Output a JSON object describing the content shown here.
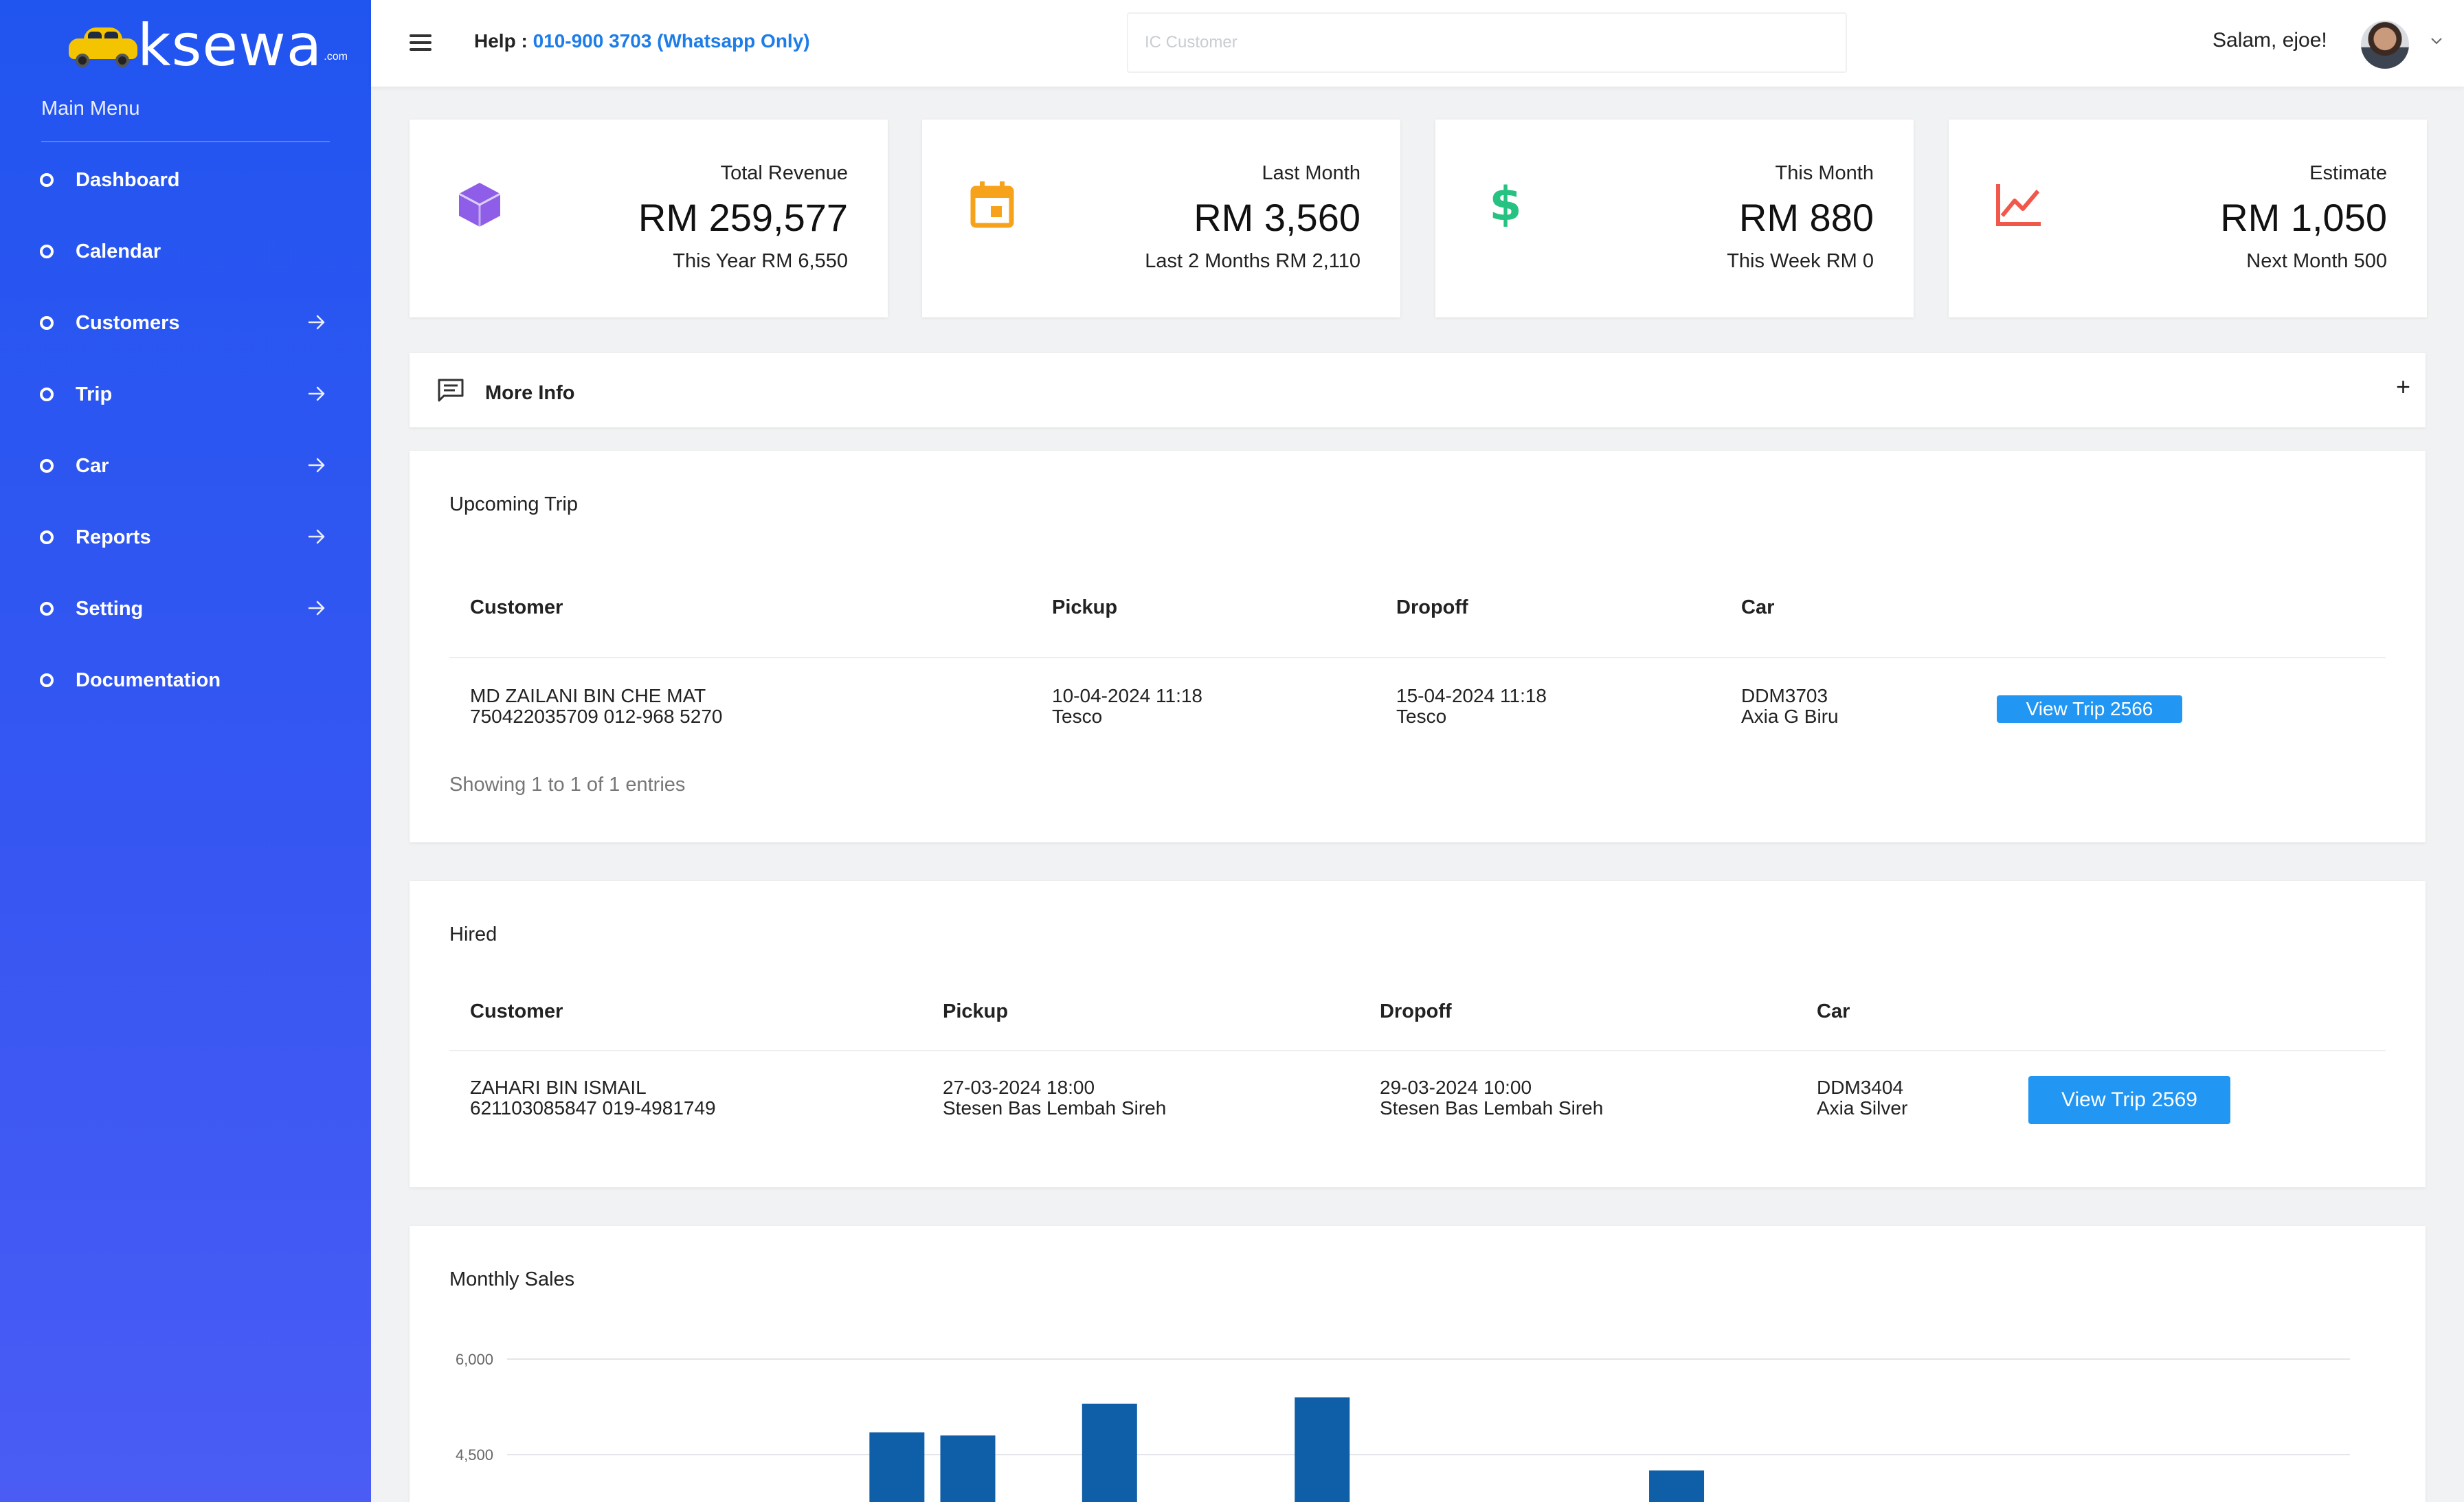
{
  "brand": {
    "name": "ksewa",
    "suffix": ".com"
  },
  "sidebar": {
    "title": "Main Menu",
    "items": [
      {
        "label": "Dashboard",
        "arrow": false
      },
      {
        "label": "Calendar",
        "arrow": false
      },
      {
        "label": "Customers",
        "arrow": true
      },
      {
        "label": "Trip",
        "arrow": true
      },
      {
        "label": "Car",
        "arrow": true
      },
      {
        "label": "Reports",
        "arrow": true
      },
      {
        "label": "Setting",
        "arrow": true
      },
      {
        "label": "Documentation",
        "arrow": false
      }
    ]
  },
  "topbar": {
    "help_label": "Help : ",
    "help_phone": "010-900 3703 (Whatsapp Only)",
    "search_placeholder": "IC Customer",
    "greeting": "Salam, ejoe!"
  },
  "stats": [
    {
      "title": "Total Revenue",
      "value": "RM 259,577",
      "sub": "This Year RM 6,550",
      "icon": "cube-icon",
      "color": "#8e5ee8"
    },
    {
      "title": "Last Month",
      "value": "RM 3,560",
      "sub": "Last 2 Months RM 2,110",
      "icon": "calendar-icon",
      "color": "#f7a21b"
    },
    {
      "title": "This Month",
      "value": "RM 880",
      "sub": "This Week RM 0",
      "icon": "dollar-icon",
      "color": "#26c281"
    },
    {
      "title": "Estimate",
      "value": "RM 1,050",
      "sub": "Next Month 500",
      "icon": "line-chart-icon",
      "color": "#f1574b"
    }
  ],
  "more_info": {
    "label": "More Info",
    "toggle": "+"
  },
  "upcoming": {
    "title": "Upcoming Trip",
    "headers": [
      "Customer",
      "Pickup",
      "Dropoff",
      "Car"
    ],
    "rows": [
      {
        "name": "MD ZAILANI BIN CHE MAT",
        "ic_phone": "750422035709   012-968 5270",
        "pickup_date": "10-04-2024 11:18",
        "pickup_place": "Tesco",
        "dropoff_date": "15-04-2024 11:18",
        "dropoff_place": "Tesco",
        "car_plate": "DDM3703",
        "car_model": "Axia G Biru",
        "action": "View Trip 2566"
      }
    ],
    "showing": "Showing 1 to 1 of 1 entries"
  },
  "hired": {
    "title": "Hired",
    "headers": [
      "Customer",
      "Pickup",
      "Dropoff",
      "Car"
    ],
    "rows": [
      {
        "name": "ZAHARI BIN ISMAIL",
        "ic_phone": "621103085847   019-4981749",
        "pickup_date": "27-03-2024 18:00",
        "pickup_place": "Stesen Bas Lembah Sireh",
        "dropoff_date": "29-03-2024 10:00",
        "dropoff_place": "Stesen Bas Lembah Sireh",
        "car_plate": "DDM3404",
        "car_model": "Axia Silver",
        "action": "View Trip 2569"
      }
    ]
  },
  "monthly_sales": {
    "title": "Monthly Sales",
    "chart_data": {
      "type": "bar",
      "title": "",
      "xlabel": "",
      "ylabel": "",
      "y_ticks_visible": [
        "6,000",
        "4,500"
      ],
      "y_tick_values": [
        6000,
        4500
      ],
      "ylim": [
        0,
        6000
      ],
      "grid": true,
      "bar_color": "#0e5ea8",
      "bars": [
        {
          "slot": 5,
          "value": 4850
        },
        {
          "slot": 6,
          "value": 4800
        },
        {
          "slot": 8,
          "value": 5300
        },
        {
          "slot": 11,
          "value": 5400
        },
        {
          "slot": 16,
          "value": 4250
        }
      ],
      "slot_count": 26
    }
  }
}
